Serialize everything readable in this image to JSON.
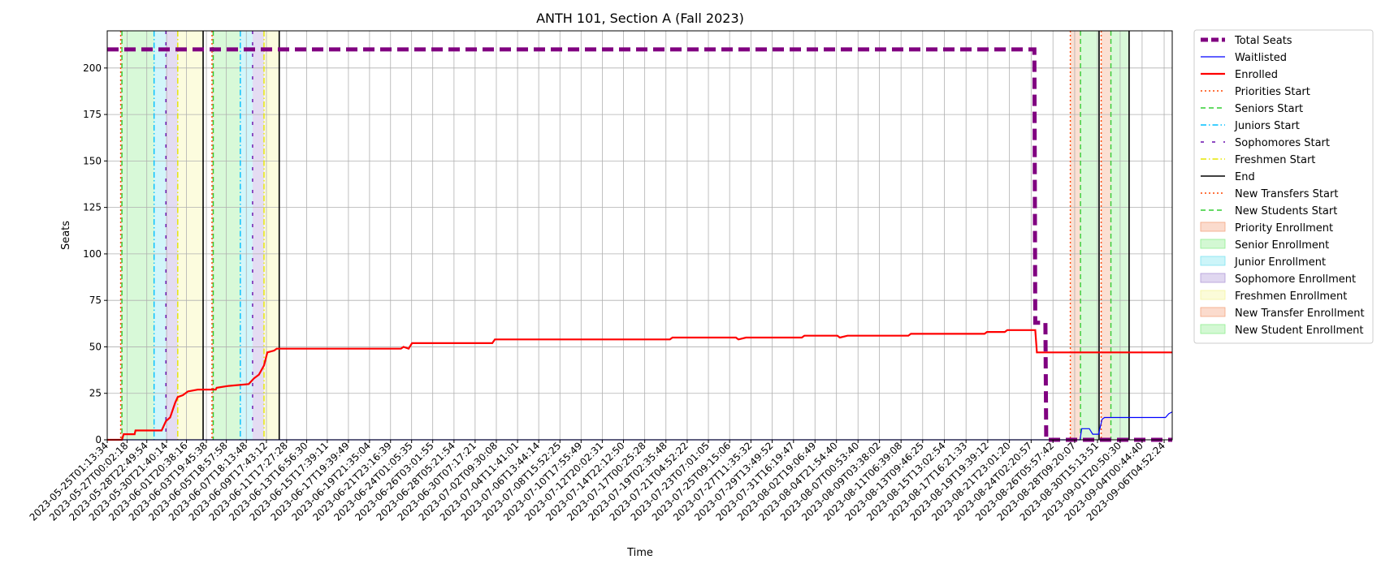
{
  "chart_data": {
    "type": "line",
    "title": "ANTH 101, Section A (Fall 2023)",
    "xlabel": "Time",
    "ylabel": "Seats",
    "ylim": [
      0,
      220
    ],
    "yticks": [
      0,
      25,
      50,
      75,
      100,
      125,
      150,
      175,
      200
    ],
    "xlim": [
      "2023-05-25T01:13:34",
      "2023-09-07T00:00:00"
    ],
    "xtick_labels": [
      "2023-05-25T01:13:34",
      "2023-05-27T00:02:18",
      "2023-05-28T22:49:54",
      "2023-05-30T21:40:14",
      "2023-06-01T20:38:16",
      "2023-06-03T19:45:38",
      "2023-06-05T18:57:58",
      "2023-06-07T18:13:48",
      "2023-06-09T17:43:12",
      "2023-06-11T17:27:28",
      "2023-06-13T16:56:30",
      "2023-06-15T17:39:11",
      "2023-06-17T19:39:49",
      "2023-06-19T21:35:04",
      "2023-06-21T23:16:39",
      "2023-06-24T01:05:35",
      "2023-06-26T03:01:55",
      "2023-06-28T05:21:54",
      "2023-06-30T07:17:21",
      "2023-07-02T09:30:08",
      "2023-07-04T11:41:01",
      "2023-07-06T13:44:14",
      "2023-07-08T15:52:25",
      "2023-07-10T17:55:49",
      "2023-07-12T20:02:31",
      "2023-07-14T22:12:50",
      "2023-07-17T00:25:28",
      "2023-07-19T02:35:48",
      "2023-07-21T04:52:22",
      "2023-07-23T07:01:05",
      "2023-07-25T09:15:06",
      "2023-07-27T11:35:32",
      "2023-07-29T13:49:52",
      "2023-07-31T16:19:47",
      "2023-08-02T19:06:49",
      "2023-08-04T21:54:40",
      "2023-08-07T00:53:40",
      "2023-08-09T03:38:02",
      "2023-08-11T06:39:08",
      "2023-08-13T09:46:25",
      "2023-08-15T13:02:54",
      "2023-08-17T16:21:33",
      "2023-08-19T19:39:12",
      "2023-08-21T23:01:20",
      "2023-08-24T02:20:57",
      "2023-08-26T05:57:42",
      "2023-08-28T09:20:07",
      "2023-08-30T15:13:51",
      "2023-09-01T20:50:30",
      "2023-09-04T00:44:40",
      "2023-09-06T04:52:24"
    ],
    "grid": true,
    "legend_position": "outside-right",
    "series": [
      {
        "name": "Total Seats",
        "color": "#800080",
        "style": "dashed-thick",
        "points": [
          [
            "2023-05-25T01:13:34",
            210
          ],
          [
            "2023-08-24T10:00:00",
            210
          ],
          [
            "2023-08-24T12:00:00",
            63
          ],
          [
            "2023-08-25T12:00:00",
            63
          ],
          [
            "2023-08-25T14:00:00",
            0
          ],
          [
            "2023-09-07T00:00:00",
            0
          ]
        ]
      },
      {
        "name": "Waitlisted",
        "color": "#0000ff",
        "style": "solid",
        "points": [
          [
            "2023-05-25T01:13:34",
            0
          ],
          [
            "2023-08-28T22:00:00",
            0
          ],
          [
            "2023-08-29T02:00:00",
            6
          ],
          [
            "2023-08-29T20:00:00",
            6
          ],
          [
            "2023-08-30T04:00:00",
            3
          ],
          [
            "2023-08-30T18:00:00",
            3
          ],
          [
            "2023-08-31T02:00:00",
            11
          ],
          [
            "2023-08-31T08:00:00",
            12
          ],
          [
            "2023-09-06T08:00:00",
            12
          ],
          [
            "2023-09-06T16:00:00",
            14
          ],
          [
            "2023-09-07T00:00:00",
            15
          ]
        ]
      },
      {
        "name": "Enrolled",
        "color": "#ff0000",
        "style": "solid-thick",
        "points": [
          [
            "2023-05-25T01:13:34",
            0
          ],
          [
            "2023-05-26T12:00:00",
            0
          ],
          [
            "2023-05-26T16:00:00",
            3
          ],
          [
            "2023-05-27T18:00:00",
            3
          ],
          [
            "2023-05-27T20:00:00",
            5
          ],
          [
            "2023-05-30T10:00:00",
            5
          ],
          [
            "2023-05-30T20:00:00",
            10
          ],
          [
            "2023-05-31T06:00:00",
            12
          ],
          [
            "2023-05-31T18:00:00",
            20
          ],
          [
            "2023-06-01T00:00:00",
            23
          ],
          [
            "2023-06-01T12:00:00",
            24
          ],
          [
            "2023-06-02T00:00:00",
            26
          ],
          [
            "2023-06-03T00:00:00",
            27
          ],
          [
            "2023-06-04T18:00:00",
            27
          ],
          [
            "2023-06-04T20:00:00",
            28
          ],
          [
            "2023-06-06T00:00:00",
            29
          ],
          [
            "2023-06-08T00:00:00",
            30
          ],
          [
            "2023-06-08T12:00:00",
            33
          ],
          [
            "2023-06-09T00:00:00",
            35
          ],
          [
            "2023-06-09T12:00:00",
            40
          ],
          [
            "2023-06-09T20:00:00",
            47
          ],
          [
            "2023-06-10T12:00:00",
            48
          ],
          [
            "2023-06-10T18:00:00",
            49
          ],
          [
            "2023-06-23T00:00:00",
            49
          ],
          [
            "2023-06-23T06:00:00",
            50
          ],
          [
            "2023-06-23T18:00:00",
            49
          ],
          [
            "2023-06-24T02:00:00",
            52
          ],
          [
            "2023-07-02T00:00:00",
            52
          ],
          [
            "2023-07-02T06:00:00",
            54
          ],
          [
            "2023-07-19T12:00:00",
            54
          ],
          [
            "2023-07-19T18:00:00",
            55
          ],
          [
            "2023-07-26T00:00:00",
            55
          ],
          [
            "2023-07-26T06:00:00",
            54
          ],
          [
            "2023-07-27T00:00:00",
            55
          ],
          [
            "2023-08-01T12:00:00",
            55
          ],
          [
            "2023-08-01T18:00:00",
            56
          ],
          [
            "2023-08-05T00:00:00",
            56
          ],
          [
            "2023-08-05T06:00:00",
            55
          ],
          [
            "2023-08-06T00:00:00",
            56
          ],
          [
            "2023-08-12T00:00:00",
            56
          ],
          [
            "2023-08-12T06:00:00",
            57
          ],
          [
            "2023-08-19T12:00:00",
            57
          ],
          [
            "2023-08-19T18:00:00",
            58
          ],
          [
            "2023-08-21T12:00:00",
            58
          ],
          [
            "2023-08-21T18:00:00",
            59
          ],
          [
            "2023-08-24T12:00:00",
            59
          ],
          [
            "2023-08-24T16:00:00",
            47
          ],
          [
            "2023-09-07T00:00:00",
            47
          ]
        ]
      }
    ],
    "phases": [
      {
        "name": "Priorities Start",
        "color": "#ff4500",
        "style": "dotted",
        "times": [
          "2023-05-26T09:00:00",
          "2023-06-04T09:00:00"
        ]
      },
      {
        "name": "Seniors Start",
        "color": "#32cd32",
        "style": "dashed",
        "times": [
          "2023-05-26T12:00:00",
          "2023-06-04T12:00:00"
        ]
      },
      {
        "name": "Juniors Start",
        "color": "#00bfff",
        "style": "dashdot",
        "times": [
          "2023-05-29T16:00:00",
          "2023-06-07T04:00:00"
        ]
      },
      {
        "name": "Sophomores Start",
        "color": "#6a0dad",
        "style": "loosedash",
        "times": [
          "2023-05-30T20:00:00",
          "2023-06-08T09:00:00"
        ]
      },
      {
        "name": "Freshmen Start",
        "color": "#e6e600",
        "style": "dashdot",
        "times": [
          "2023-06-01T00:00:00",
          "2023-06-09T12:00:00"
        ]
      },
      {
        "name": "End",
        "color": "#000000",
        "style": "solid",
        "times": [
          "2023-06-03T12:00:00",
          "2023-06-11T00:00:00",
          "2023-08-30T19:00:00",
          "2023-09-02T18:00:00"
        ]
      },
      {
        "name": "New Transfers Start",
        "color": "#ff4500",
        "style": "dotted",
        "times": [
          "2023-08-27T23:00:00",
          "2023-08-31T00:00:00"
        ]
      },
      {
        "name": "New Students Start",
        "color": "#32cd32",
        "style": "dashed",
        "times": [
          "2023-08-28T23:00:00",
          "2023-08-31T23:00:00"
        ]
      }
    ],
    "regions": [
      {
        "name": "Priority Enrollment",
        "color": "#f4a582",
        "spans": [
          [
            "2023-05-26T09:00:00",
            "2023-05-26T12:00:00"
          ],
          [
            "2023-06-04T09:00:00",
            "2023-06-04T12:00:00"
          ]
        ]
      },
      {
        "name": "Senior Enrollment",
        "color": "#90ee90",
        "spans": [
          [
            "2023-05-26T12:00:00",
            "2023-05-29T16:00:00"
          ],
          [
            "2023-06-04T12:00:00",
            "2023-06-07T04:00:00"
          ]
        ]
      },
      {
        "name": "Junior Enrollment",
        "color": "#7fe5f0",
        "spans": [
          [
            "2023-05-29T16:00:00",
            "2023-05-30T20:00:00"
          ],
          [
            "2023-06-07T04:00:00",
            "2023-06-08T09:00:00"
          ]
        ]
      },
      {
        "name": "Sophomore Enrollment",
        "color": "#b19cd9",
        "spans": [
          [
            "2023-05-30T20:00:00",
            "2023-06-01T00:00:00"
          ],
          [
            "2023-06-08T09:00:00",
            "2023-06-09T12:00:00"
          ]
        ]
      },
      {
        "name": "Freshmen Enrollment",
        "color": "#f5f5a0",
        "spans": [
          [
            "2023-06-01T00:00:00",
            "2023-06-03T12:00:00"
          ],
          [
            "2023-06-09T12:00:00",
            "2023-06-11T00:00:00"
          ]
        ]
      },
      {
        "name": "New Transfer Enrollment",
        "color": "#f4a582",
        "spans": [
          [
            "2023-08-27T23:00:00",
            "2023-08-28T23:00:00"
          ],
          [
            "2023-08-31T00:00:00",
            "2023-08-31T23:00:00"
          ]
        ]
      },
      {
        "name": "New Student Enrollment",
        "color": "#90ee90",
        "spans": [
          [
            "2023-08-28T23:00:00",
            "2023-08-30T19:00:00"
          ],
          [
            "2023-08-31T23:00:00",
            "2023-09-02T18:00:00"
          ]
        ]
      }
    ],
    "legend": [
      "Total Seats",
      "Waitlisted",
      "Enrolled",
      "Priorities Start",
      "Seniors Start",
      "Juniors Start",
      "Sophomores Start",
      "Freshmen Start",
      "End",
      "New Transfers Start",
      "New Students Start",
      "Priority Enrollment",
      "Senior Enrollment",
      "Junior Enrollment",
      "Sophomore Enrollment",
      "Freshmen Enrollment",
      "New Transfer Enrollment",
      "New Student Enrollment"
    ]
  }
}
